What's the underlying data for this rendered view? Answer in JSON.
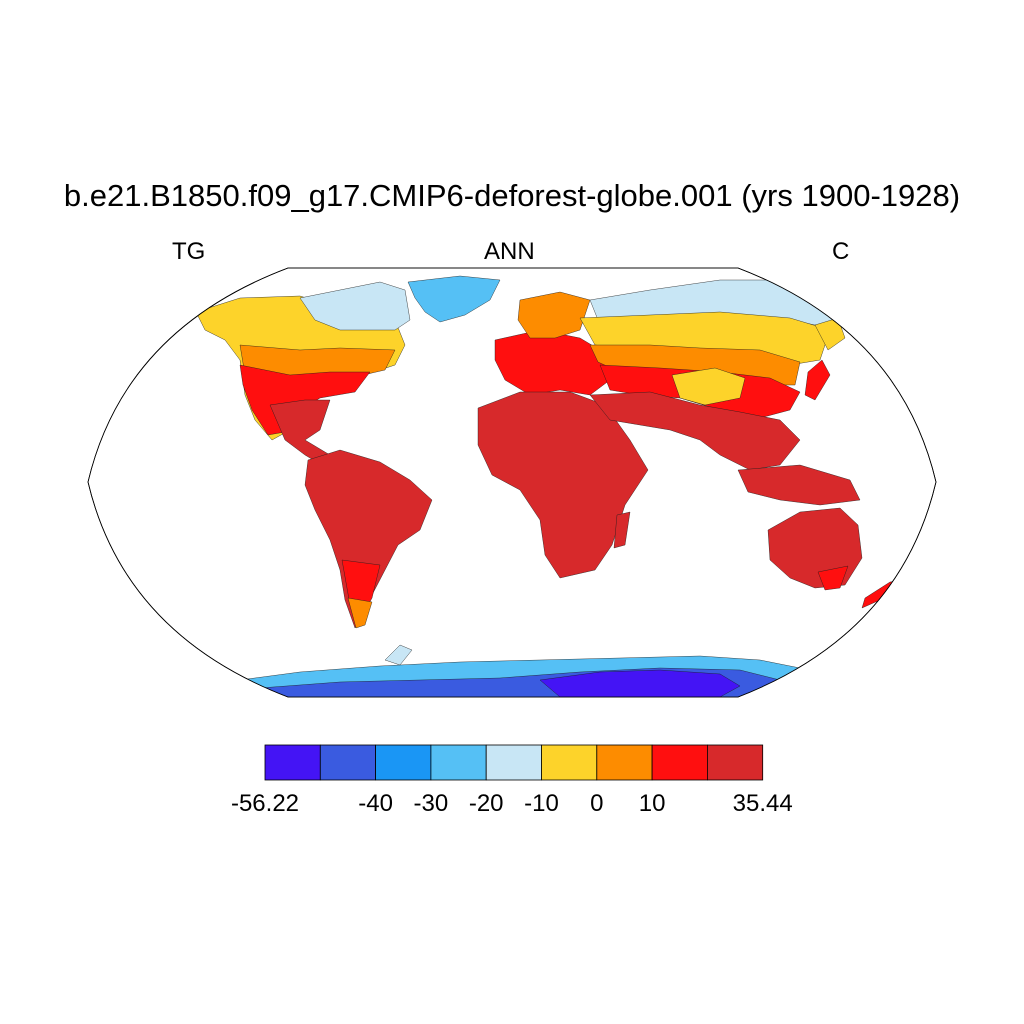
{
  "title": "b.e21.B1850.f09_g17.CMIP6-deforest-globe.001 (yrs 1900-1928)",
  "left_string": "TG",
  "center_string": "ANN",
  "right_string": "C",
  "colorbar": {
    "colors": [
      "#4414f5",
      "#3a5be0",
      "#1a96f5",
      "#55c0f5",
      "#c8e6f5",
      "#fdd32a",
      "#fd8c00",
      "#ff0f0f",
      "#d7292b"
    ],
    "labels": [
      "-56.22",
      "",
      "-40",
      "-30",
      "-20",
      "-10",
      "0",
      "10",
      "",
      "35.44"
    ]
  },
  "map_colors": {
    "tropics": "#d7292b",
    "warm": "#ff0f0f",
    "temperate": "#fd8c00",
    "cool": "#fdd32a",
    "cold": "#c8e6f5",
    "ice": "#55c0f5",
    "deep_ice": "#3a5be0",
    "core_ice": "#4414f5"
  }
}
